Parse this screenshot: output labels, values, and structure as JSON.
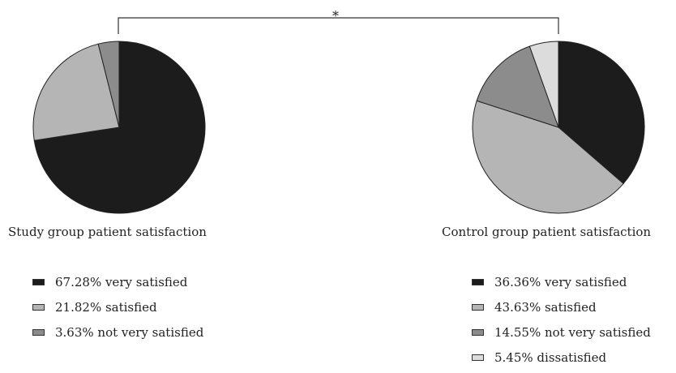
{
  "significance_marker": "*",
  "chart_data": [
    {
      "type": "pie",
      "title": "Study group patient satisfaction",
      "slices": [
        {
          "label": "67.28% very satisfied",
          "value": 67.28,
          "color": "#1c1c1c"
        },
        {
          "label": "21.82% satisfied",
          "value": 21.82,
          "color": "#b5b5b5"
        },
        {
          "label": "3.63% not very satisfied",
          "value": 3.63,
          "color": "#8c8c8c"
        }
      ]
    },
    {
      "type": "pie",
      "title": "Control group patient satisfaction",
      "slices": [
        {
          "label": "36.36% very satisfied",
          "value": 36.36,
          "color": "#1c1c1c"
        },
        {
          "label": "43.63% satisfied",
          "value": 43.63,
          "color": "#b5b5b5"
        },
        {
          "label": "14.55% not very satisfied",
          "value": 14.55,
          "color": "#8c8c8c"
        },
        {
          "label": "5.45% dissatisfied",
          "value": 5.45,
          "color": "#dcdcdc"
        }
      ]
    }
  ]
}
